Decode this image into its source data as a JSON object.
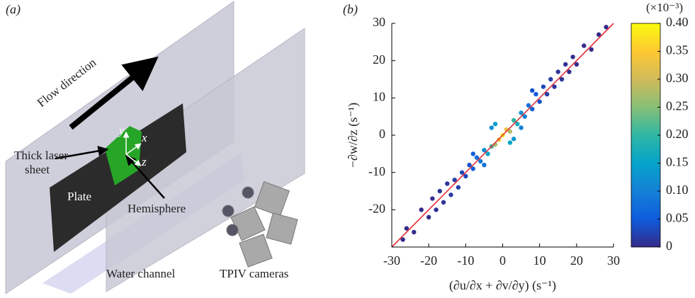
{
  "diagram": {
    "panel_label": "(a)",
    "flow": "Flow direction",
    "laser_line1": "Thick laser",
    "laser_line2": "sheet",
    "axis_y": "y",
    "axis_x": "x",
    "axis_z": "z",
    "plate": "Plate",
    "hemisphere": "Hemisphere",
    "channel": "Water channel",
    "cameras": "TPIV cameras"
  },
  "chart_data": {
    "type": "scatter",
    "panel_label": "(b)",
    "x_label": "(∂u/∂x + ∂v/∂y) (s⁻¹)",
    "y_label": "−∂w/∂z (s⁻¹)",
    "xlim": [
      -30,
      30
    ],
    "xticks": [
      -30,
      -20,
      -10,
      0,
      10,
      20,
      30
    ],
    "ylim": [
      -30,
      30
    ],
    "yticks": [
      -20,
      -10,
      0,
      10,
      20,
      30
    ],
    "colorbar_label": "(×10⁻³)",
    "clim": [
      0,
      0.4
    ],
    "cticks": [
      0,
      0.05,
      {
        "value": 0.1,
        "label": "0.10"
      },
      0.15,
      {
        "value": 0.2,
        "label": "0.20"
      },
      0.25,
      {
        "value": 0.3,
        "label": "0.30"
      },
      0.35,
      {
        "value": 0.4,
        "label": "0.40"
      }
    ],
    "colormap": [
      "#352a87",
      "#0f5cdd",
      "#1481d6",
      "#06a4ca",
      "#2eb7a4",
      "#87bf77",
      "#d1bb59",
      "#fec832",
      "#f9fb0e"
    ],
    "points": {
      "x": [
        0,
        1,
        -1,
        2,
        -2,
        3,
        -3,
        4,
        -4,
        5,
        -5,
        6,
        -6,
        7,
        -7,
        8,
        -8,
        9,
        -9,
        10,
        -10,
        11,
        -11,
        12,
        -12,
        13,
        -13,
        14,
        -14,
        15,
        -15,
        16,
        -16,
        17,
        -17,
        18,
        -18,
        19,
        -19,
        20,
        -20,
        22,
        -22,
        24,
        -24,
        26,
        -26,
        28,
        -27,
        5,
        -5,
        8,
        -8,
        2,
        -2,
        3,
        -3
      ],
      "y": [
        0,
        1.5,
        -1.2,
        1,
        -2.5,
        4,
        -3,
        3,
        -5,
        6,
        -4,
        5,
        -7,
        8,
        -6,
        7,
        -9,
        11,
        -8,
        9,
        -11,
        13,
        -10,
        11,
        -14,
        15,
        -12,
        13,
        -16,
        17,
        -13,
        15,
        -18,
        19,
        -15,
        17,
        -20,
        21,
        -17,
        19,
        -22,
        24,
        -20,
        23,
        -26,
        27,
        -25,
        29,
        -28,
        2,
        -8,
        12,
        -5,
        -2,
        3,
        -1,
        2
      ],
      "density": [
        0.38,
        0.33,
        0.34,
        0.28,
        0.27,
        0.2,
        0.21,
        0.17,
        0.15,
        0.12,
        0.12,
        0.1,
        0.09,
        0.08,
        0.07,
        0.06,
        0.05,
        0.05,
        0.04,
        0.04,
        0.03,
        0.03,
        0.03,
        0.02,
        0.02,
        0.02,
        0.02,
        0.015,
        0.015,
        0.01,
        0.01,
        0.01,
        0.01,
        0.008,
        0.008,
        0.005,
        0.005,
        0.004,
        0.004,
        0.003,
        0.003,
        0.002,
        0.002,
        0.001,
        0.001,
        0.001,
        0.001,
        0.001,
        0.001,
        0.1,
        0.08,
        0.04,
        0.05,
        0.15,
        0.14,
        0.13,
        0.12
      ]
    },
    "line": {
      "x": [
        -30,
        30
      ],
      "y": [
        -30,
        30
      ],
      "color": "#e0303a"
    }
  }
}
